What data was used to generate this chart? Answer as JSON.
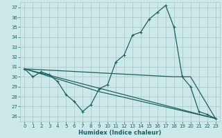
{
  "xlabel": "Humidex (Indice chaleur)",
  "background_color": "#cce8e8",
  "grid_color": "#aacccc",
  "line_color": "#1a6060",
  "xlim": [
    -0.5,
    23.5
  ],
  "ylim": [
    25.5,
    37.5
  ],
  "xticks": [
    0,
    1,
    2,
    3,
    4,
    5,
    6,
    7,
    8,
    9,
    10,
    11,
    12,
    13,
    14,
    15,
    16,
    17,
    18,
    19,
    20,
    21,
    22,
    23
  ],
  "yticks": [
    26,
    27,
    28,
    29,
    30,
    31,
    32,
    33,
    34,
    35,
    36,
    37
  ],
  "series1_x": [
    0,
    1,
    2,
    3,
    4,
    5,
    6,
    7,
    8,
    9,
    10,
    11,
    12,
    13,
    14,
    15,
    16,
    17,
    18,
    19,
    20,
    21,
    22,
    23
  ],
  "series1_y": [
    30.8,
    30.0,
    30.5,
    30.2,
    29.5,
    28.2,
    27.5,
    26.5,
    27.2,
    28.8,
    29.2,
    31.5,
    32.2,
    34.2,
    34.5,
    35.8,
    36.5,
    37.2,
    35.0,
    30.0,
    29.0,
    26.5,
    26.2,
    25.8
  ],
  "series2_x": [
    0,
    23
  ],
  "series2_y": [
    30.8,
    25.8
  ],
  "series3_x": [
    0,
    18,
    20,
    23
  ],
  "series3_y": [
    30.8,
    30.0,
    30.0,
    25.8
  ],
  "series4_x": [
    0,
    9,
    23
  ],
  "series4_y": [
    30.8,
    28.5,
    25.8
  ]
}
